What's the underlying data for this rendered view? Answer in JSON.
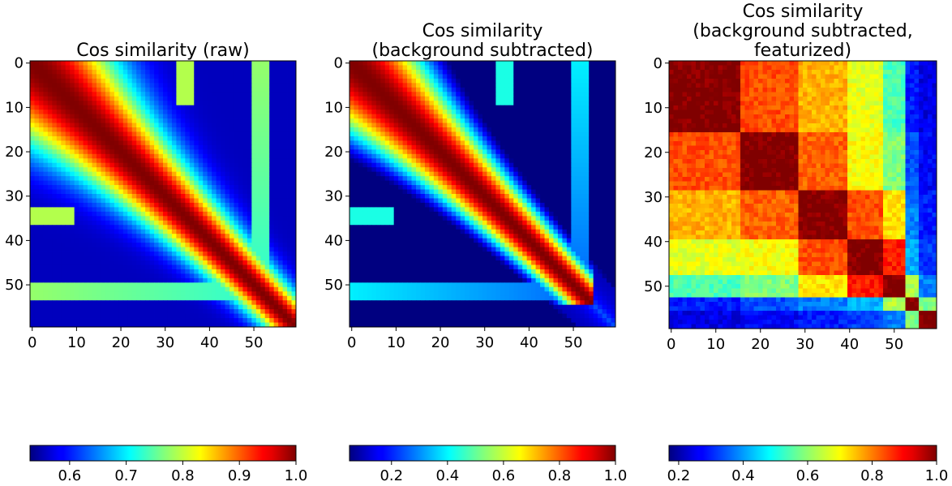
{
  "chart_data": [
    {
      "type": "heatmap",
      "title": [
        "Cos similarity (raw)"
      ],
      "matrix_size": 60,
      "x_ticks": [
        "0",
        "10",
        "20",
        "30",
        "40",
        "50"
      ],
      "y_ticks": [
        "0",
        "10",
        "20",
        "30",
        "40",
        "50"
      ],
      "xlim": [
        0,
        59
      ],
      "ylim": [
        59,
        0
      ],
      "colormap": "jet",
      "colorbar": {
        "range": [
          0.53,
          1.0
        ],
        "ticks": [
          "0.6",
          "0.7",
          "0.8",
          "0.9",
          "1.0"
        ],
        "tick_values": [
          0.6,
          0.7,
          0.8,
          0.9,
          1.0
        ],
        "placement": "bottom"
      },
      "description_of_pattern": "high similarity along diagonal with broad red band; secondary structure near rows 50-55"
    },
    {
      "type": "heatmap",
      "title": [
        "Cos similarity",
        "(background subtracted)"
      ],
      "matrix_size": 60,
      "x_ticks": [
        "0",
        "10",
        "20",
        "30",
        "40",
        "50"
      ],
      "y_ticks": [
        "0",
        "10",
        "20",
        "30",
        "40",
        "50"
      ],
      "xlim": [
        0,
        59
      ],
      "ylim": [
        59,
        0
      ],
      "colormap": "jet",
      "colorbar": {
        "range": [
          0.05,
          1.0
        ],
        "ticks": [
          "0.2",
          "0.4",
          "0.6",
          "0.8",
          "1.0"
        ],
        "tick_values": [
          0.2,
          0.4,
          0.6,
          0.8,
          1.0
        ],
        "placement": "bottom"
      }
    },
    {
      "type": "heatmap",
      "title": [
        "Cos similarity",
        "(background subtracted,",
        "featurized)"
      ],
      "matrix_size": 60,
      "x_ticks": [
        "0",
        "10",
        "20",
        "30",
        "40",
        "50"
      ],
      "y_ticks": [
        "0",
        "10",
        "20",
        "30",
        "40",
        "50"
      ],
      "xlim": [
        0,
        59
      ],
      "ylim": [
        59,
        0
      ],
      "colormap": "jet",
      "block_boundaries": [
        0,
        16,
        29,
        40,
        48,
        53,
        56,
        60
      ],
      "colorbar": {
        "range": [
          0.17,
          1.0
        ],
        "ticks": [
          "0.2",
          "0.4",
          "0.6",
          "0.8",
          "1.0"
        ],
        "tick_values": [
          0.2,
          0.4,
          0.6,
          0.8,
          1.0
        ],
        "placement": "bottom"
      }
    }
  ]
}
